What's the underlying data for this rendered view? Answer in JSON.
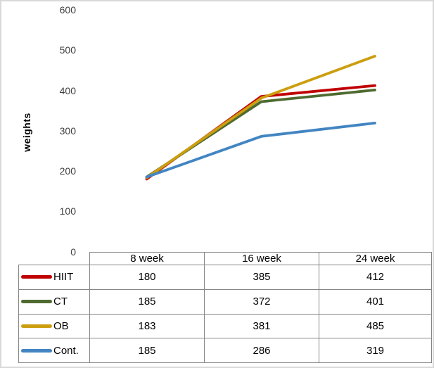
{
  "frame": {
    "background": "#FFFFFF",
    "border_color": "#D9D9D9",
    "table_border_color": "#858585",
    "axis_tick_color": "#404040"
  },
  "chart_data": {
    "type": "line",
    "title": "",
    "xlabel": "",
    "ylabel": "weights",
    "categories": [
      "8 week",
      "16 week",
      "24 week"
    ],
    "series": [
      {
        "name": "HIIT",
        "color": "#C00000",
        "values": [
          180,
          385,
          412
        ]
      },
      {
        "name": "CT",
        "color": "#4E6B30",
        "values": [
          185,
          372,
          401
        ]
      },
      {
        "name": "OB",
        "color": "#CC9E10",
        "values": [
          183,
          381,
          485
        ]
      },
      {
        "name": "Cont.",
        "color": "#4285C2",
        "values": [
          185,
          286,
          319
        ]
      }
    ],
    "ylim": [
      0,
      600
    ],
    "y_ticks": [
      600,
      500,
      400,
      300,
      200,
      100,
      0
    ],
    "gridlines": false,
    "markers": false,
    "legend_position": "data-table-left",
    "data_table_shown": true
  }
}
